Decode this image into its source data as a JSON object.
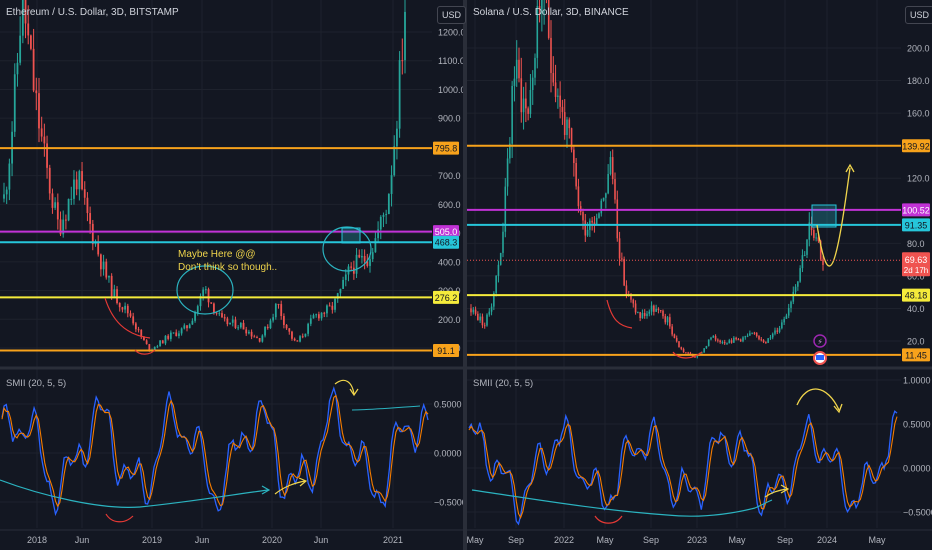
{
  "colors": {
    "bg": "#131722",
    "grid": "#1e222d",
    "axis_text": "#b2b5be",
    "up": "#26a69a",
    "down": "#ef5350",
    "orange": "#f7a21b",
    "yellow": "#f5eb3b",
    "purple": "#c132d6",
    "cyan": "#26c6da",
    "smii": "#2962ff",
    "signal": "#f57c00",
    "annotation_red": "#e53935",
    "annotation_cyan": "#2bb3c0",
    "annotation_yellow": "#f0d54c"
  },
  "left": {
    "title": "Ethereum / U.S. Dollar, 3D, BITSTAMP",
    "currency_button": "USD",
    "indicator_label": "SMII (20, 5, 5)",
    "note_line1": "Maybe Here @@",
    "note_line2": "Don't think so though..",
    "chart_data": {
      "type": "candlestick",
      "symbol": "ETHUSD",
      "interval": "3D",
      "y_axis_ticks": [
        1200.0,
        1100.0,
        1000.0,
        900.0,
        700.0,
        600.0,
        500.0,
        400.0,
        300.0,
        200.0,
        100.0
      ],
      "x_axis_ticks": [
        "2018",
        "Jun",
        "2019",
        "Jun",
        "2020",
        "Jun",
        "2021"
      ],
      "horizontal_levels": [
        {
          "value": 795.8,
          "label": "795.8",
          "color": "#f7a21b"
        },
        {
          "value": 505.0,
          "label": "505.0",
          "color": "#c132d6"
        },
        {
          "value": 468.3,
          "label": "468.3",
          "color": "#26c6da"
        },
        {
          "value": 276.2,
          "label": "276.2",
          "color": "#f5eb3b"
        },
        {
          "value": 91.1,
          "label": "91.1",
          "color": "#f7a21b"
        }
      ],
      "close_path": [
        [
          "2017-12",
          620
        ],
        [
          "2018-01",
          1350
        ],
        [
          "2018-02",
          850
        ],
        [
          "2018-03",
          520
        ],
        [
          "2018-05",
          700
        ],
        [
          "2018-06",
          470
        ],
        [
          "2018-08",
          290
        ],
        [
          "2018-10",
          210
        ],
        [
          "2018-12",
          95
        ],
        [
          "2019-02",
          140
        ],
        [
          "2019-04",
          170
        ],
        [
          "2019-06",
          310
        ],
        [
          "2019-08",
          190
        ],
        [
          "2019-10",
          180
        ],
        [
          "2019-12",
          130
        ],
        [
          "2020-02",
          260
        ],
        [
          "2020-03",
          115
        ],
        [
          "2020-05",
          210
        ],
        [
          "2020-07",
          240
        ],
        [
          "2020-09",
          380
        ],
        [
          "2020-11",
          420
        ],
        [
          "2020-12",
          600
        ],
        [
          "2021-01",
          1300
        ]
      ]
    },
    "indicator": {
      "name": "SMII",
      "params": [
        20,
        5,
        5
      ],
      "y_axis_ticks": [
        0.5,
        0.0,
        -0.5
      ],
      "y_axis_labels": [
        "0.5000",
        "0.0000",
        "−0.5000"
      ]
    }
  },
  "right": {
    "title": "Solana / U.S. Dollar, 3D, BINANCE",
    "currency_button": "USD",
    "indicator_label": "SMII (20, 5, 5)",
    "chart_data": {
      "type": "candlestick",
      "symbol": "SOLUSD",
      "interval": "3D",
      "y_axis_ticks": [
        200.0,
        180.0,
        160.0,
        120.0,
        80.0,
        60.0,
        40.0,
        20.0
      ],
      "x_axis_ticks": [
        "May",
        "Sep",
        "2022",
        "May",
        "Sep",
        "2023",
        "May",
        "Sep",
        "2024",
        "May"
      ],
      "horizontal_levels": [
        {
          "value": 139.92,
          "label": "139.92",
          "color": "#f7a21b"
        },
        {
          "value": 100.52,
          "label": "100.52",
          "color": "#c132d6"
        },
        {
          "value": 91.35,
          "label": "91.35",
          "color": "#26c6da"
        },
        {
          "value": 48.18,
          "label": "48.18",
          "color": "#f5eb3b"
        },
        {
          "value": 11.45,
          "label": "11.45",
          "color": "#f7a21b"
        }
      ],
      "last_price": {
        "value": 69.63,
        "label": "69.63",
        "countdown": "2d 17h"
      },
      "close_path": [
        [
          "2021-05",
          40
        ],
        [
          "2021-07",
          30
        ],
        [
          "2021-08",
          70
        ],
        [
          "2021-09",
          190
        ],
        [
          "2021-10",
          160
        ],
        [
          "2021-11",
          240
        ],
        [
          "2021-12",
          180
        ],
        [
          "2022-01",
          140
        ],
        [
          "2022-02",
          90
        ],
        [
          "2022-03",
          100
        ],
        [
          "2022-04",
          130
        ],
        [
          "2022-05",
          50
        ],
        [
          "2022-06",
          35
        ],
        [
          "2022-08",
          40
        ],
        [
          "2022-10",
          32
        ],
        [
          "2022-11",
          14
        ],
        [
          "2022-12",
          10
        ],
        [
          "2023-01",
          22
        ],
        [
          "2023-03",
          20
        ],
        [
          "2023-05",
          21
        ],
        [
          "2023-07",
          24
        ],
        [
          "2023-09",
          20
        ],
        [
          "2023-10",
          30
        ],
        [
          "2023-11",
          55
        ],
        [
          "2023-12",
          90
        ],
        [
          "2024-01",
          69.63
        ]
      ]
    },
    "indicator": {
      "name": "SMII",
      "params": [
        20,
        5,
        5
      ],
      "y_axis_ticks": [
        1.0,
        0.5,
        0.0,
        -0.5
      ],
      "y_axis_labels": [
        "1.0000",
        "0.5000",
        "0.0000",
        "−0.5000"
      ]
    }
  }
}
